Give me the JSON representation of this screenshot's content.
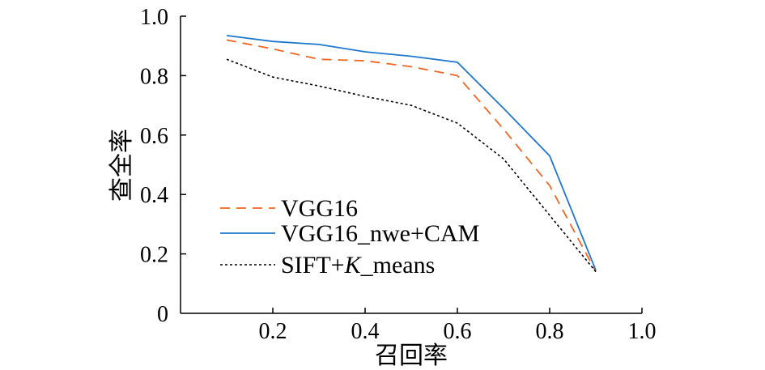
{
  "chart_data": {
    "type": "line",
    "title": "",
    "xlabel": "召回率",
    "ylabel": "查全率",
    "xlim": [
      0,
      1.0
    ],
    "ylim": [
      0,
      1.0
    ],
    "x_ticks": [
      {
        "value": 0.2,
        "label": "0.2"
      },
      {
        "value": 0.4,
        "label": "0.4"
      },
      {
        "value": 0.6,
        "label": "0.6"
      },
      {
        "value": 0.8,
        "label": "0.8"
      },
      {
        "value": 1.0,
        "label": "1.0"
      }
    ],
    "y_ticks": [
      {
        "value": 0,
        "label": "0"
      },
      {
        "value": 0.2,
        "label": "0.2"
      },
      {
        "value": 0.4,
        "label": "0.4"
      },
      {
        "value": 0.6,
        "label": "0.6"
      },
      {
        "value": 0.8,
        "label": "0.8"
      },
      {
        "value": 1.0,
        "label": "1.0"
      }
    ],
    "grid": false,
    "legend_position": "bottom-left",
    "series": [
      {
        "name": "VGG16",
        "color": "#f26522",
        "dash": "dashed",
        "x": [
          0.1,
          0.2,
          0.3,
          0.4,
          0.5,
          0.6,
          0.7,
          0.8,
          0.9
        ],
        "values": [
          0.92,
          0.89,
          0.855,
          0.85,
          0.83,
          0.8,
          0.62,
          0.43,
          0.14
        ]
      },
      {
        "name": "VGG16_nwe+CAM",
        "color": "#1f77d0",
        "dash": "solid",
        "x": [
          0.1,
          0.2,
          0.3,
          0.4,
          0.5,
          0.6,
          0.7,
          0.8,
          0.9
        ],
        "values": [
          0.935,
          0.915,
          0.905,
          0.88,
          0.865,
          0.845,
          0.69,
          0.53,
          0.145
        ]
      },
      {
        "name_prefix": "SIFT+",
        "name_italic": "K",
        "name_suffix": "_means",
        "color": "#000000",
        "dash": "dotted",
        "x": [
          0.1,
          0.2,
          0.3,
          0.4,
          0.5,
          0.6,
          0.7,
          0.8,
          0.9
        ],
        "values": [
          0.855,
          0.795,
          0.765,
          0.73,
          0.7,
          0.64,
          0.52,
          0.33,
          0.14
        ]
      }
    ]
  }
}
